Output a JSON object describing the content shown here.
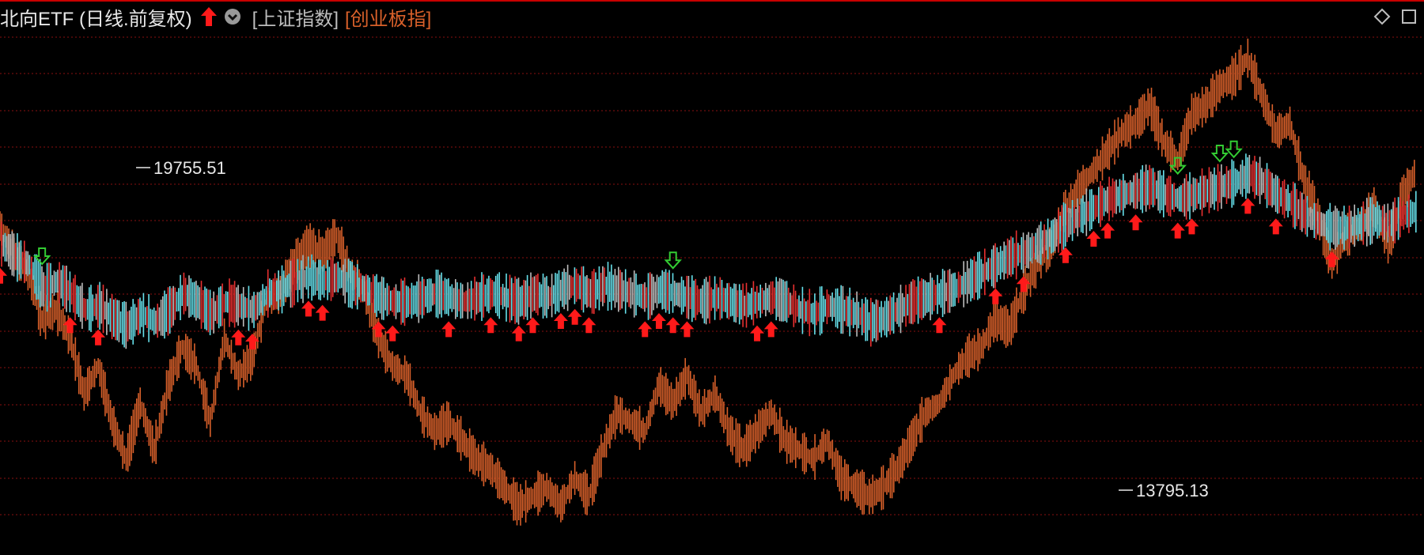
{
  "header": {
    "title": "北向ETF (日线.前复权)",
    "link_sse": "[上证指数]",
    "link_cyb": "[创业板指]",
    "arrow_icon": "red-up-arrow-icon",
    "dropdown_icon": "chevron-down-circle-icon",
    "corner_icons": [
      "diamond-icon",
      "maximize-window-icon"
    ]
  },
  "colors": {
    "background": "#000000",
    "grid": "#8a1010",
    "bar_up": "#d8602a",
    "bar_down": "#66e0ea",
    "bar_neutral": "#bdbdbd",
    "bar_red": "#e83030",
    "buy_arrow": "#ff1a1a",
    "sell_arrow": "#33cc33"
  },
  "chart_data": {
    "type": "line",
    "grid": true,
    "annotations": {
      "high": "19755.51",
      "low": "13795.13"
    },
    "series": [
      {
        "values": [
          0.6,
          0.54,
          0.5,
          0.4,
          0.42,
          0.36,
          0.24,
          0.3,
          0.18,
          0.1,
          0.22,
          0.12,
          0.26,
          0.34,
          0.3,
          0.18,
          0.36,
          0.28,
          0.32,
          0.44,
          0.46,
          0.52,
          0.56,
          0.54,
          0.58,
          0.5,
          0.46,
          0.36,
          0.3,
          0.28,
          0.2,
          0.16,
          0.18,
          0.14,
          0.1,
          0.08,
          0.04,
          0.0,
          0.02,
          0.04,
          0.0,
          0.06,
          0.02,
          0.12,
          0.2,
          0.18,
          0.16,
          0.26,
          0.22,
          0.28,
          0.2,
          0.24,
          0.16,
          0.12,
          0.16,
          0.2,
          0.14,
          0.12,
          0.1,
          0.14,
          0.06,
          0.04,
          0.02,
          0.04,
          0.08,
          0.14,
          0.2,
          0.22,
          0.28,
          0.32,
          0.34,
          0.4,
          0.38,
          0.46,
          0.52,
          0.56,
          0.64,
          0.68,
          0.72,
          0.76,
          0.8,
          0.82,
          0.86,
          0.78,
          0.74,
          0.84,
          0.86,
          0.9,
          0.92,
          0.96,
          0.88,
          0.8,
          0.82,
          0.7,
          0.62,
          0.52,
          0.58,
          0.6,
          0.64,
          0.56,
          0.66,
          0.72
        ]
      },
      {
        "values": [
          0.62,
          0.56,
          0.52,
          0.4,
          0.44,
          0.38,
          0.3,
          0.32,
          0.26,
          0.22,
          0.28,
          0.24,
          0.3,
          0.38,
          0.34,
          0.28,
          0.34,
          0.32,
          0.3,
          0.38,
          0.4,
          0.44,
          0.46,
          0.44,
          0.46,
          0.42,
          0.4,
          0.36,
          0.34,
          0.34,
          0.36,
          0.38,
          0.36,
          0.34,
          0.36,
          0.38,
          0.36,
          0.34,
          0.38,
          0.36,
          0.4,
          0.42,
          0.38,
          0.42,
          0.4,
          0.38,
          0.36,
          0.4,
          0.38,
          0.36,
          0.34,
          0.36,
          0.34,
          0.32,
          0.34,
          0.36,
          0.34,
          0.3,
          0.28,
          0.32,
          0.3,
          0.28,
          0.24,
          0.26,
          0.3,
          0.34,
          0.36,
          0.38,
          0.4,
          0.44,
          0.48,
          0.52,
          0.56,
          0.58,
          0.62,
          0.66,
          0.72,
          0.76,
          0.8,
          0.84,
          0.86,
          0.88,
          0.9,
          0.86,
          0.84,
          0.86,
          0.88,
          0.9,
          0.92,
          0.96,
          0.92,
          0.86,
          0.82,
          0.76,
          0.72,
          0.7,
          0.7,
          0.72,
          0.74,
          0.72,
          0.76,
          0.78
        ]
      }
    ],
    "buy_signals": [
      0,
      5,
      7,
      17,
      18,
      22,
      23,
      27,
      28,
      32,
      35,
      37,
      38,
      40,
      41,
      42,
      46,
      47,
      48,
      49,
      54,
      55,
      67,
      71,
      73,
      76,
      78,
      79,
      81,
      84,
      85,
      89,
      91,
      95
    ],
    "sell_signals": [
      3,
      48,
      87,
      88,
      84
    ]
  }
}
